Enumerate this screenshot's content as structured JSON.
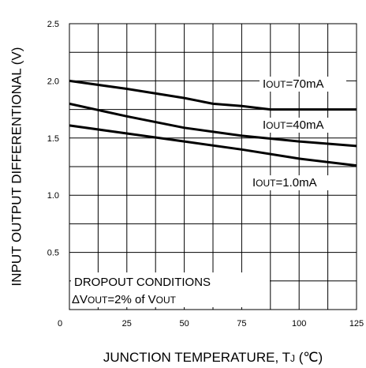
{
  "chart_data": {
    "type": "line",
    "title": "",
    "xlabel": "JUNCTION TEMPERATURE, TJ (℃)",
    "xlabel_parts": {
      "main": "JUNCTION TEMPERATURE, T",
      "sub": "J",
      "tail": " (℃)"
    },
    "ylabel": "INPUT OUTPUT DIFFERENTIONAL (V)",
    "xlim": [
      0,
      125
    ],
    "ylim": [
      0,
      2.5
    ],
    "x_ticks": [
      0,
      25,
      50,
      75,
      100,
      125
    ],
    "x_tick_labels": [
      "0",
      "25",
      "50",
      "75",
      "100",
      "125"
    ],
    "y_ticks": [
      0.5,
      1.0,
      1.5,
      2.0,
      2.5
    ],
    "y_tick_labels": [
      "0.5",
      "1.0",
      "1.5",
      "2.0",
      "2.5"
    ],
    "grid": true,
    "series": [
      {
        "name": "IOUT=70mA",
        "label_main": "I",
        "label_sub": "OUT",
        "label_tail": "=70mA",
        "x": [
          0,
          25,
          50,
          62.5,
          75,
          87.5,
          100,
          125
        ],
        "values": [
          2.0,
          1.93,
          1.85,
          1.8,
          1.78,
          1.75,
          1.75,
          1.75
        ]
      },
      {
        "name": "IOUT=40mA",
        "label_main": "I",
        "label_sub": "OUT",
        "label_tail": "=40mA",
        "x": [
          0,
          25,
          50,
          75,
          100,
          125
        ],
        "values": [
          1.8,
          1.69,
          1.59,
          1.52,
          1.47,
          1.43
        ]
      },
      {
        "name": "IOUT=1.0mA",
        "label_main": "I",
        "label_sub": "OUT",
        "label_tail": "=1.0mA",
        "x": [
          0,
          25,
          50,
          75,
          100,
          125
        ],
        "values": [
          1.61,
          1.54,
          1.47,
          1.4,
          1.32,
          1.26
        ]
      }
    ],
    "annotation": {
      "line1": "DROPOUT CONDITIONS",
      "line2_main": "ΔV",
      "line2_sub": "OUT",
      "line2_mid": "=2% of V",
      "line2_sub2": "OUT"
    },
    "line_color": "#000000",
    "grid_color": "#000000"
  }
}
